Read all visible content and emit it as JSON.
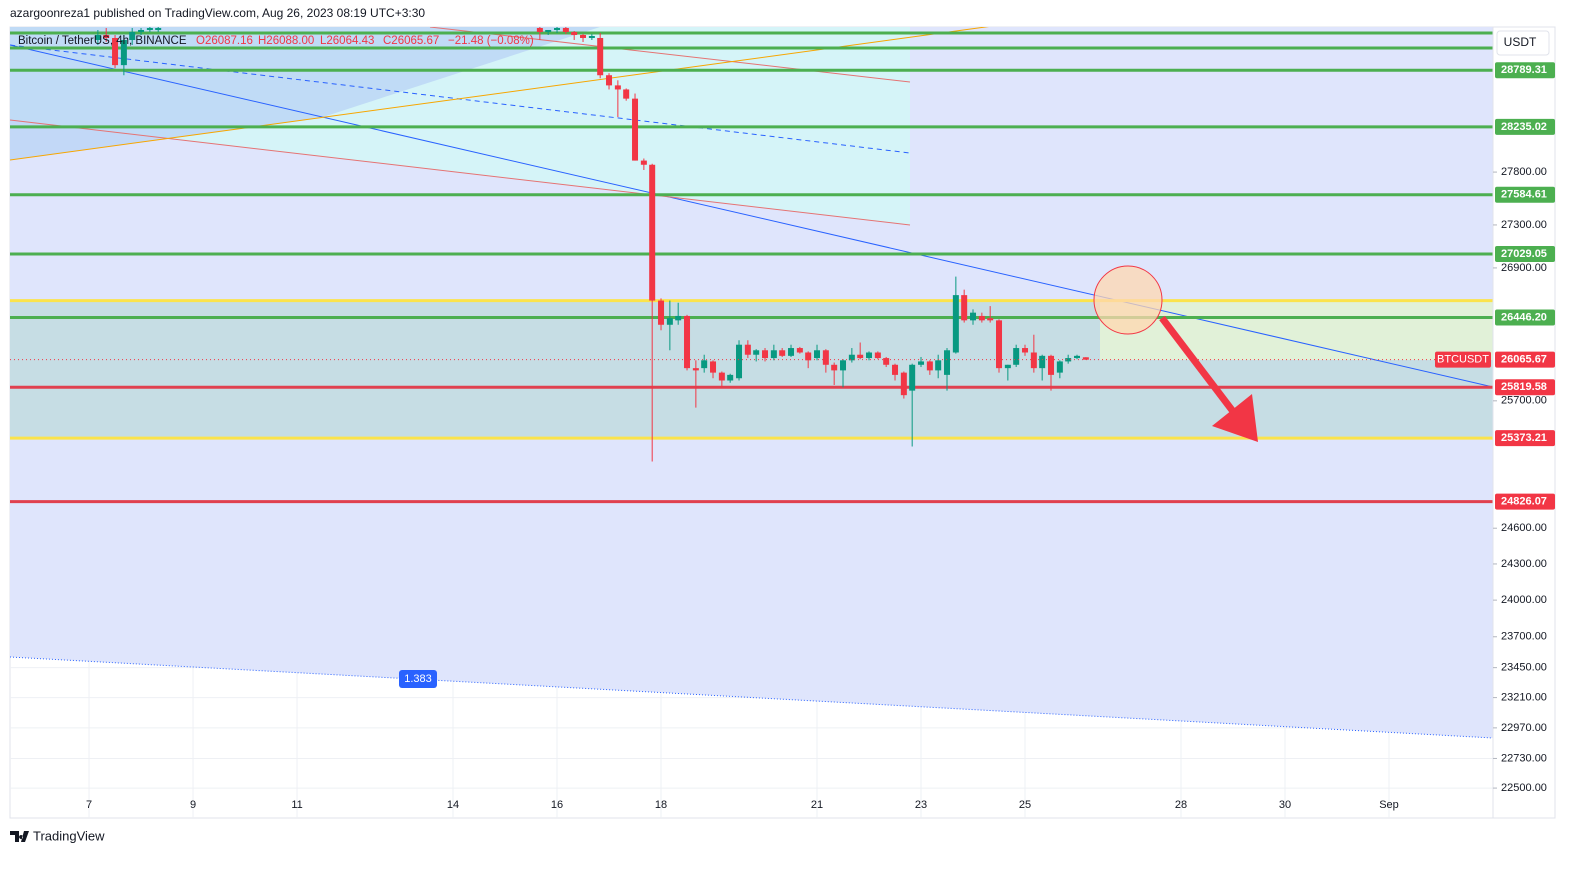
{
  "header": "azargoonreza1 published on TradingView.com, Aug 26, 2023 08:19 UTC+3:30",
  "footer": "TradingView",
  "chart_data": {
    "type": "candlestick",
    "legend": {
      "symbol": "Bitcoin / TetherUS, 4h, BINANCE",
      "open": "O26087.16",
      "high": "H26088.00",
      "low": "L26064.43",
      "close": "C26065.67",
      "change": "−21.48 (−0.08%)"
    },
    "currency": "USDT",
    "symbol_tag": "BTCUSDT",
    "fib_label": "1.383",
    "log_scale": true,
    "grid": true,
    "up_color": "#089981",
    "down_color": "#f23645",
    "xlim": [
      5.48,
      34.0
    ],
    "xticks": [
      7,
      9,
      11,
      14,
      16,
      18,
      21,
      23,
      25,
      28,
      30,
      {
        "value": 32,
        "label": "Sep"
      }
    ],
    "ylim": [
      22270,
      29220
    ],
    "yticks": [
      {
        "value": 27800,
        "label": "27800.00"
      },
      {
        "value": 27300,
        "label": "27300.00"
      },
      {
        "value": 26900,
        "label": "26900.00"
      },
      {
        "value": 25700,
        "label": "25700.00"
      },
      {
        "value": 24600,
        "label": "24600.00"
      },
      {
        "value": 24300,
        "label": "24300.00"
      },
      {
        "value": 24000,
        "label": "24000.00"
      },
      {
        "value": 23700,
        "label": "23700.00"
      },
      {
        "value": 23450,
        "label": "23450.00"
      },
      {
        "value": 23210,
        "label": "23210.00"
      },
      {
        "value": 22970,
        "label": "22970.00"
      },
      {
        "value": 22730,
        "label": "22730.00"
      },
      {
        "value": 22500,
        "label": "22500.00"
      }
    ],
    "levels": [
      {
        "value": 29160,
        "color": "#4caf50"
      },
      {
        "value": 29010,
        "color": "#4caf50"
      },
      {
        "value": 28789.31,
        "label": "28789.31",
        "color": "#4caf50",
        "label_color": "#4caf50"
      },
      {
        "value": 28235.02,
        "label": "28235.02",
        "color": "#4caf50",
        "label_color": "#4caf50"
      },
      {
        "value": 27584.61,
        "label": "27584.61",
        "color": "#4caf50",
        "label_color": "#4caf50"
      },
      {
        "value": 27029.05,
        "label": "27029.05",
        "color": "#4caf50",
        "label_color": "#4caf50"
      },
      {
        "value": 26600,
        "color": "#fbe34b"
      },
      {
        "value": 26446.2,
        "label": "26446.20",
        "color": "#4caf50",
        "label_color": "#4caf50"
      },
      {
        "value": 25819.58,
        "label": "25819.58",
        "color": "#e0404f",
        "label_color": "#f23645"
      },
      {
        "value": 25373.21,
        "label": "25373.21",
        "color": "#fbe34b",
        "label_color": "#f23645"
      },
      {
        "value": 24826.07,
        "label": "24826.07",
        "color": "#e0404f",
        "label_color": "#f23645"
      }
    ],
    "x": [
      7.17,
      7.33,
      7.5,
      7.67,
      7.83,
      8.0,
      8.17,
      8.33,
      15.67,
      15.83,
      16.0,
      16.17,
      16.33,
      16.5,
      16.67,
      16.83,
      17.0,
      17.17,
      17.33,
      17.5,
      17.67,
      17.83,
      18.0,
      18.17,
      18.33,
      18.5,
      18.67,
      18.83,
      19.0,
      19.17,
      19.33,
      19.5,
      19.67,
      19.83,
      20.0,
      20.17,
      20.33,
      20.5,
      20.67,
      20.83,
      21.0,
      21.17,
      21.33,
      21.5,
      21.67,
      21.83,
      22.0,
      22.17,
      22.33,
      22.5,
      22.67,
      22.83,
      23.0,
      23.17,
      23.33,
      23.5,
      23.67,
      23.83,
      24.0,
      24.17,
      24.33,
      24.5,
      24.67,
      24.83,
      25.0,
      25.17,
      25.33,
      25.5,
      25.67,
      25.83,
      26.0,
      26.17
    ],
    "open": [
      29090,
      29140,
      29110,
      28840,
      29090,
      29170,
      29190,
      29190,
      29210,
      29170,
      29190,
      29210,
      29170,
      29140,
      29110,
      29110,
      28740,
      28640,
      28600,
      28510,
      27910,
      27870,
      26600,
      26380,
      26420,
      26460,
      25990,
      25990,
      26050,
      25950,
      25880,
      25900,
      26200,
      26110,
      26150,
      26080,
      26150,
      26100,
      26170,
      26130,
      26080,
      26150,
      26020,
      25970,
      26060,
      26110,
      26080,
      26130,
      26080,
      26020,
      25950,
      25790,
      26020,
      26050,
      25970,
      25930,
      26130,
      26650,
      26420,
      26460,
      26440,
      26420,
      25990,
      26020,
      26170,
      26130,
      25990,
      26100,
      25950,
      26050,
      26080,
      26087.16
    ],
    "high": [
      29190,
      29210,
      29140,
      29140,
      29210,
      29210,
      29220,
      29220,
      29220,
      29190,
      29220,
      29220,
      29180,
      29150,
      29150,
      29160,
      28760,
      28690,
      28610,
      28560,
      27930,
      27880,
      26620,
      26600,
      26580,
      26470,
      26060,
      26110,
      26060,
      25960,
      25940,
      26240,
      26240,
      26160,
      26170,
      26200,
      26170,
      26200,
      26180,
      26140,
      26200,
      26160,
      26040,
      26070,
      26170,
      26220,
      26140,
      26140,
      26090,
      26030,
      25960,
      26030,
      26090,
      26060,
      26110,
      26170,
      26820,
      26700,
      26520,
      26490,
      26550,
      26430,
      26020,
      26200,
      26200,
      26290,
      26110,
      26110,
      26060,
      26110,
      26110,
      26088.0
    ],
    "low": [
      29040,
      29070,
      28810,
      28740,
      29040,
      29140,
      29170,
      29170,
      29090,
      29140,
      29160,
      29150,
      29090,
      29070,
      29090,
      28710,
      28600,
      28330,
      28490,
      27910,
      27820,
      25170,
      26330,
      26150,
      26380,
      25970,
      25640,
      25950,
      25900,
      25820,
      25860,
      25880,
      26080,
      26050,
      26050,
      26060,
      26090,
      26090,
      26120,
      25990,
      26060,
      25950,
      25840,
      25820,
      26040,
      26070,
      26060,
      26070,
      26000,
      25880,
      25720,
      25300,
      26000,
      25930,
      25900,
      25790,
      26120,
      26400,
      26380,
      26400,
      26400,
      25950,
      25880,
      26000,
      26100,
      25950,
      25880,
      25790,
      25900,
      26030,
      26070,
      26064.43
    ],
    "close": [
      29140,
      29110,
      28840,
      29090,
      29170,
      29190,
      29210,
      29210,
      29170,
      29190,
      29210,
      29170,
      29140,
      29110,
      29130,
      28740,
      28640,
      28600,
      28510,
      27910,
      27870,
      26600,
      26380,
      26440,
      26460,
      25990,
      25970,
      26060,
      25950,
      25880,
      25930,
      26200,
      26110,
      26150,
      26080,
      26150,
      26100,
      26170,
      26130,
      26060,
      26150,
      26020,
      25970,
      26060,
      26110,
      26080,
      26130,
      26080,
      26020,
      25930,
      25750,
      26020,
      26050,
      25970,
      26060,
      26150,
      26650,
      26420,
      26490,
      26420,
      26420,
      25990,
      26020,
      26170,
      26130,
      25990,
      26100,
      25930,
      26050,
      26080,
      26100,
      26065.67
    ]
  }
}
